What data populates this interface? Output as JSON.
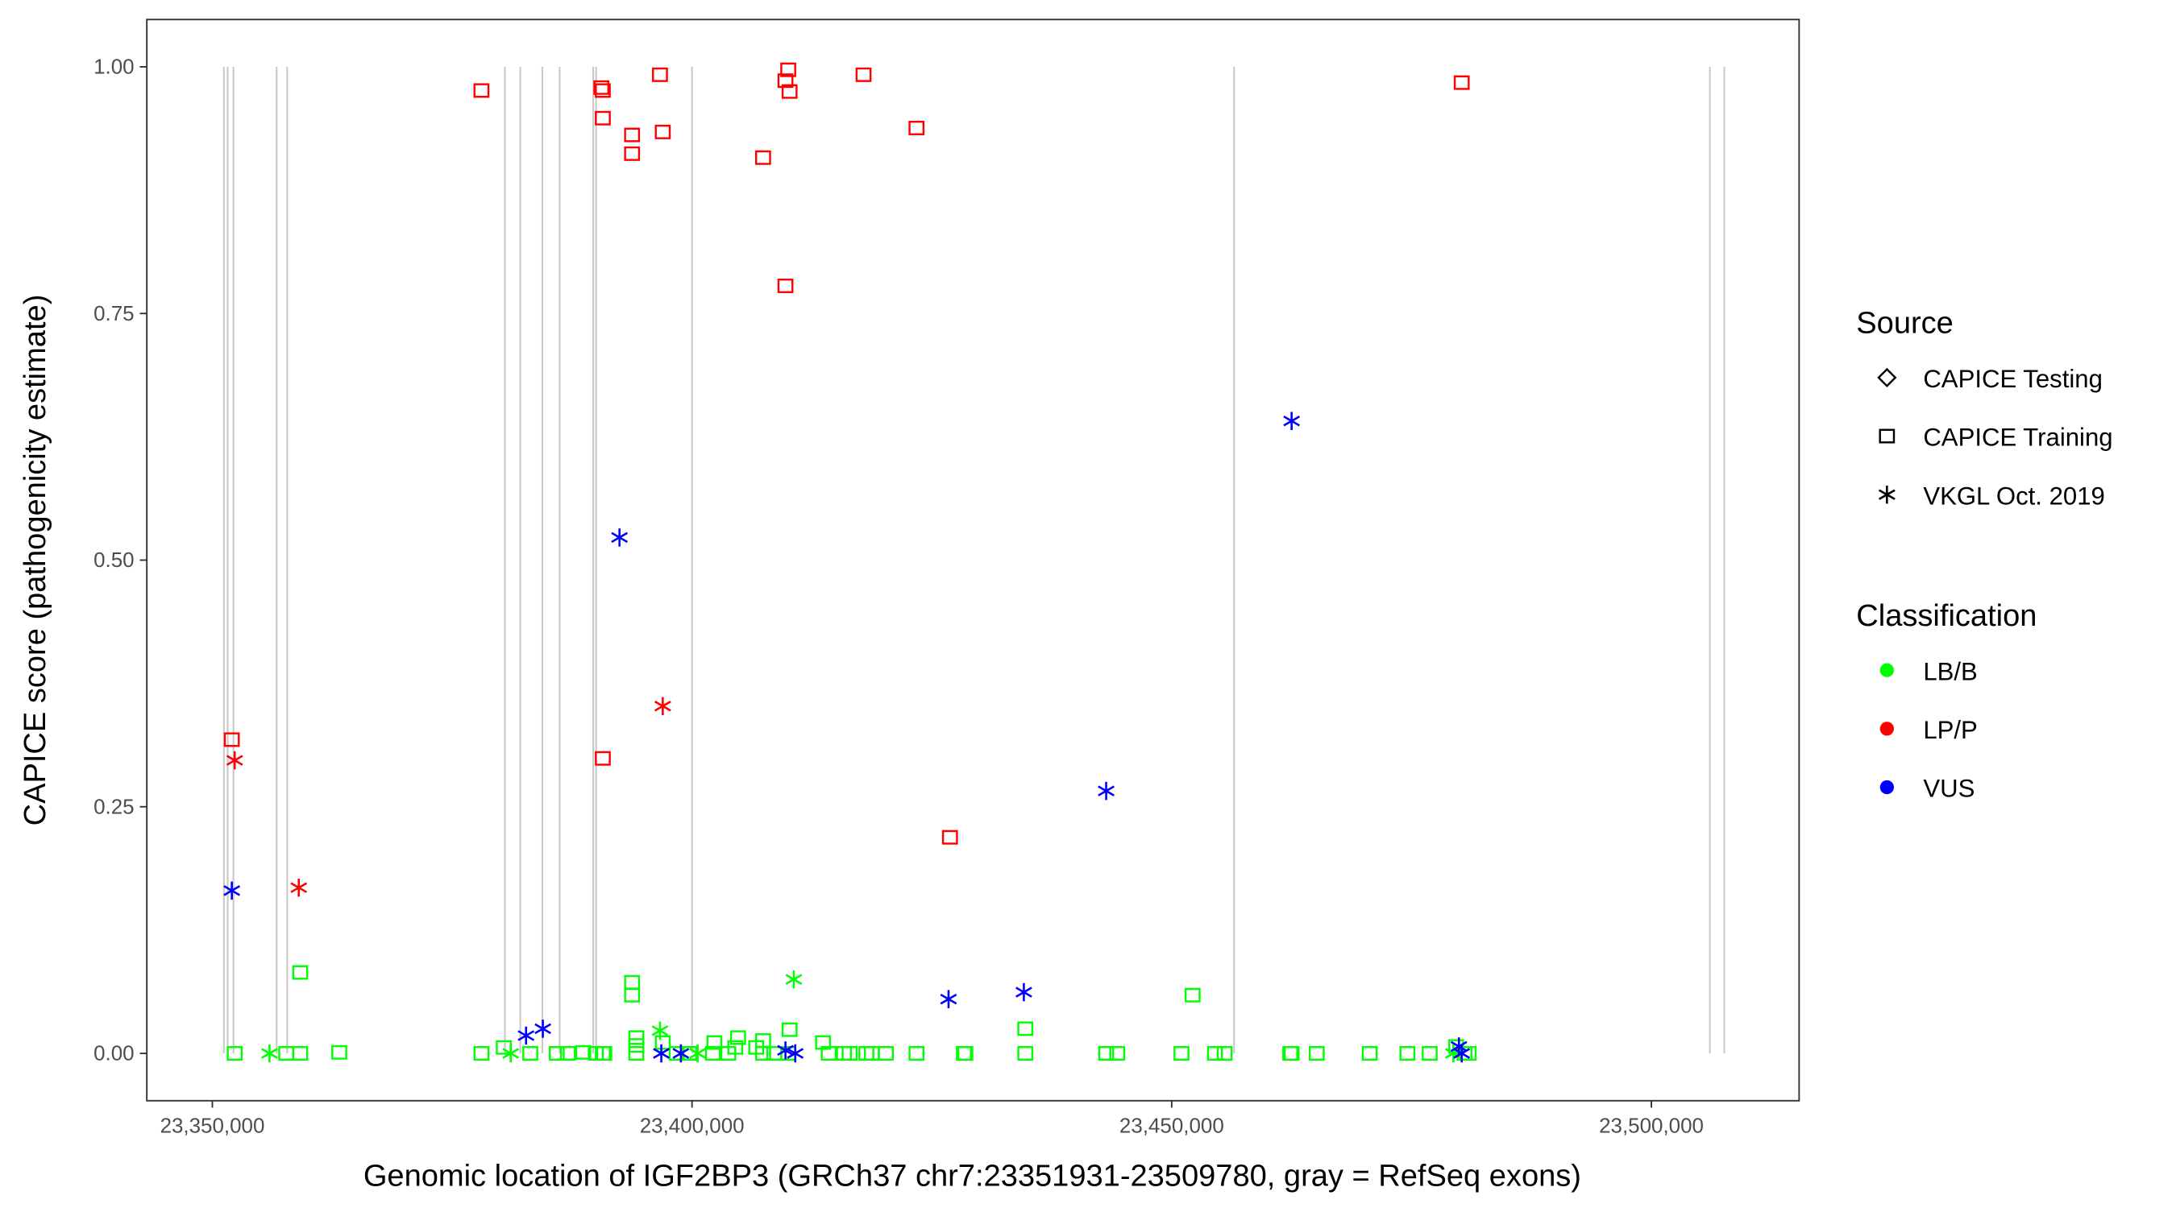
{
  "chart_data": {
    "type": "scatter",
    "xlabel": "Genomic location of IGF2BP3 (GRCh37 chr7:23351931-23509780, gray = RefSeq exons)",
    "ylabel": "CAPICE score (pathogenicity estimate)",
    "xlim": [
      23343170,
      23515400
    ],
    "ylim": [
      -0.048,
      1.048
    ],
    "x_ticks": [
      23350000,
      23400000,
      23450000,
      23500000
    ],
    "x_tick_labels": [
      "23,350,000",
      "23,400,000",
      "23,450,000",
      "23,500,000"
    ],
    "y_ticks": [
      0,
      0.25,
      0.5,
      0.75,
      1.0
    ],
    "y_tick_labels": [
      "0.00",
      "0.25",
      "0.50",
      "0.75",
      "1.00"
    ],
    "grid": false,
    "exons": [
      23351200,
      23351600,
      23352200,
      23356700,
      23357800,
      23380500,
      23382100,
      23384400,
      23386200,
      23389700,
      23390000,
      23400000,
      23456500,
      23506100,
      23507600
    ],
    "exon_color": "#c8c8c8",
    "legend": {
      "placement": "right",
      "source_title": "Source",
      "source_items": [
        {
          "label": "CAPICE Testing",
          "shape": "diamond"
        },
        {
          "label": "CAPICE Training",
          "shape": "square"
        },
        {
          "label": "VKGL Oct. 2019",
          "shape": "asterisk"
        }
      ],
      "class_title": "Classification",
      "class_items": [
        {
          "label": "LB/B",
          "color": "#00ff00"
        },
        {
          "label": "LP/P",
          "color": "#ff0000"
        },
        {
          "label": "VUS",
          "color": "#0000ff"
        }
      ]
    },
    "series": [
      {
        "classification": "LP/P",
        "source": "CAPICE Training",
        "color": "#ff0000",
        "shape": "square",
        "points": [
          [
            23378050,
            0.976
          ],
          [
            23390550,
            0.979
          ],
          [
            23390700,
            0.976
          ],
          [
            23390700,
            0.948
          ],
          [
            23396660,
            0.992
          ],
          [
            23393750,
            0.931
          ],
          [
            23393750,
            0.912
          ],
          [
            23396950,
            0.934
          ],
          [
            23410030,
            0.997
          ],
          [
            23409740,
            0.986
          ],
          [
            23410170,
            0.975
          ],
          [
            23417880,
            0.992
          ],
          [
            23423400,
            0.938
          ],
          [
            23407410,
            0.908
          ],
          [
            23409740,
            0.778
          ],
          [
            23480230,
            0.984
          ],
          [
            23352030,
            0.318
          ],
          [
            23390700,
            0.299
          ],
          [
            23426890,
            0.219
          ]
        ]
      },
      {
        "classification": "LP/P",
        "source": "VKGL Oct. 2019",
        "color": "#ff0000",
        "shape": "asterisk",
        "points": [
          [
            23352330,
            0.297
          ],
          [
            23359010,
            0.168
          ],
          [
            23396950,
            0.352
          ]
        ]
      },
      {
        "classification": "LB/B",
        "source": "CAPICE Training",
        "color": "#00ff00",
        "shape": "square",
        "points": [
          [
            23352330,
            0
          ],
          [
            23357700,
            0
          ],
          [
            23359160,
            0
          ],
          [
            23363230,
            0.001
          ],
          [
            23378050,
            0
          ],
          [
            23380380,
            0.006
          ],
          [
            23383140,
            0
          ],
          [
            23385900,
            0
          ],
          [
            23387060,
            0
          ],
          [
            23388660,
            0.001
          ],
          [
            23389970,
            0
          ],
          [
            23390700,
            0
          ],
          [
            23390850,
            0
          ],
          [
            23359160,
            0.082
          ],
          [
            23393750,
            0.072
          ],
          [
            23393750,
            0.059
          ],
          [
            23394190,
            0.016
          ],
          [
            23394190,
            0.008
          ],
          [
            23394190,
            0
          ],
          [
            23396950,
            0.011
          ],
          [
            23398400,
            0
          ],
          [
            23399710,
            0
          ],
          [
            23402180,
            0
          ],
          [
            23402330,
            0.011
          ],
          [
            23403780,
            0
          ],
          [
            23404510,
            0.006
          ],
          [
            23404800,
            0.016
          ],
          [
            23406690,
            0.006
          ],
          [
            23407410,
            0.013
          ],
          [
            23407410,
            0
          ],
          [
            23408580,
            0
          ],
          [
            23410170,
            0.024
          ],
          [
            23410030,
            0
          ],
          [
            23413660,
            0.011
          ],
          [
            23414250,
            0
          ],
          [
            23415840,
            0
          ],
          [
            23416430,
            0
          ],
          [
            23418170,
            0
          ],
          [
            23418750,
            0
          ],
          [
            23420200,
            0
          ],
          [
            23423400,
            0
          ],
          [
            23428340,
            0
          ],
          [
            23428490,
            0
          ],
          [
            23434740,
            0.025
          ],
          [
            23434740,
            0
          ],
          [
            23443170,
            0
          ],
          [
            23444330,
            0
          ],
          [
            23451020,
            0
          ],
          [
            23452180,
            0.059
          ],
          [
            23454510,
            0
          ],
          [
            23455520,
            0
          ],
          [
            23462360,
            0
          ],
          [
            23462500,
            0
          ],
          [
            23465120,
            0
          ],
          [
            23470640,
            0
          ],
          [
            23474570,
            0
          ],
          [
            23476890,
            0
          ],
          [
            23479650,
            0.007
          ],
          [
            23480520,
            0
          ],
          [
            23480960,
            0
          ]
        ]
      },
      {
        "classification": "LB/B",
        "source": "VKGL Oct. 2019",
        "color": "#00ff00",
        "shape": "asterisk",
        "points": [
          [
            23355960,
            0
          ],
          [
            23381100,
            0
          ],
          [
            23396660,
            0.023
          ],
          [
            23410610,
            0.075
          ],
          [
            23400580,
            0
          ],
          [
            23479360,
            0
          ]
        ]
      },
      {
        "classification": "VUS",
        "source": "VKGL Oct. 2019",
        "color": "#0000ff",
        "shape": "asterisk",
        "points": [
          [
            23352030,
            0.165
          ],
          [
            23392440,
            0.523
          ],
          [
            23462500,
            0.641
          ],
          [
            23443170,
            0.266
          ],
          [
            23426740,
            0.055
          ],
          [
            23434590,
            0.062
          ],
          [
            23382700,
            0.018
          ],
          [
            23384450,
            0.025
          ],
          [
            23396800,
            0
          ],
          [
            23398840,
            0
          ],
          [
            23409740,
            0.003
          ],
          [
            23410760,
            0
          ],
          [
            23479940,
            0.007
          ],
          [
            23480230,
            0
          ]
        ]
      }
    ]
  }
}
